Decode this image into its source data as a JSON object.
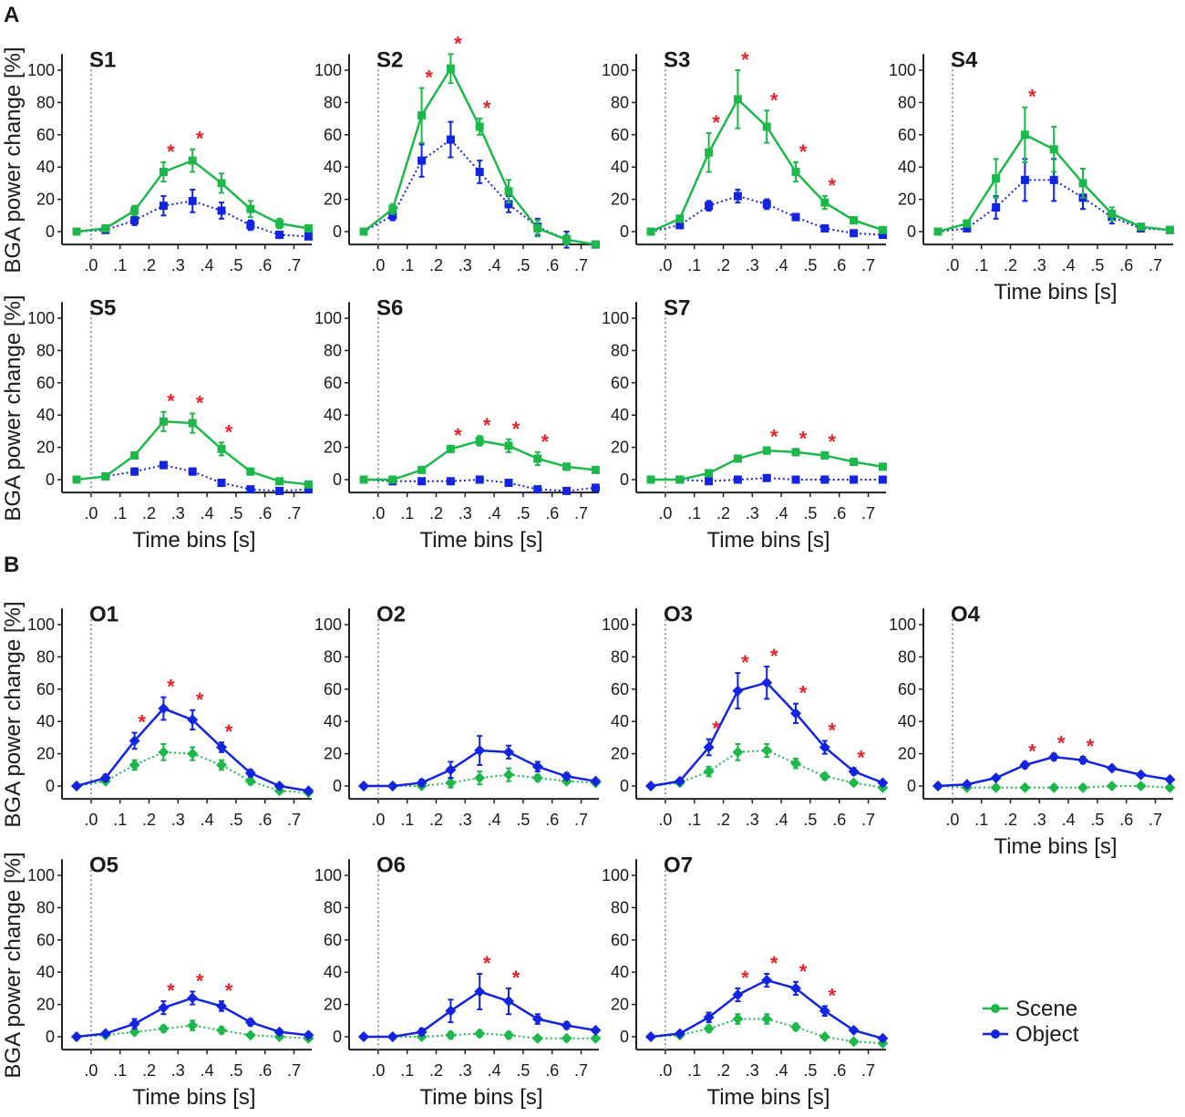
{
  "colors": {
    "scene": "#1db84a",
    "object": "#1224e0",
    "star": "#e8202a",
    "onset": "#999999"
  },
  "sections": [
    {
      "label": "A"
    },
    {
      "label": "B"
    }
  ],
  "legend": {
    "scene": "Scene",
    "object": "Object"
  },
  "axes": {
    "ylabel": "BGA power change [%]",
    "xlabel": "Time bins [s]",
    "yticks": [
      "0",
      "20",
      "40",
      "60",
      "80",
      "100"
    ],
    "xticks": [
      ".0",
      ".1",
      ".2",
      ".3",
      ".4",
      ".5",
      ".6",
      ".7"
    ]
  },
  "chart_data": [
    {
      "type": "line",
      "title": "S1",
      "ylim": [
        -8,
        110
      ],
      "x": [
        -0.05,
        0.05,
        0.15,
        0.25,
        0.35,
        0.45,
        0.55,
        0.65,
        0.75
      ],
      "series": [
        {
          "name": "Scene",
          "values": [
            0,
            2,
            13,
            37,
            44,
            30,
            14,
            5,
            2
          ],
          "err": [
            0,
            2,
            3,
            6,
            7,
            6,
            5,
            3,
            2
          ]
        },
        {
          "name": "Object",
          "values": [
            0,
            1,
            7,
            16,
            19,
            13,
            4,
            -2,
            -3
          ],
          "err": [
            0,
            1,
            3,
            6,
            7,
            5,
            3,
            2,
            1
          ]
        }
      ],
      "significant_bins": [
        0.25,
        0.35
      ]
    },
    {
      "type": "line",
      "title": "S2",
      "ylim": [
        -8,
        110
      ],
      "x": [
        -0.05,
        0.05,
        0.15,
        0.25,
        0.35,
        0.45,
        0.55,
        0.65,
        0.75
      ],
      "series": [
        {
          "name": "Scene",
          "values": [
            0,
            14,
            72,
            101,
            65,
            25,
            2,
            -5,
            -8
          ],
          "err": [
            0,
            3,
            17,
            9,
            5,
            7,
            5,
            3,
            1
          ]
        },
        {
          "name": "Object",
          "values": [
            0,
            10,
            44,
            57,
            37,
            17,
            3,
            -5,
            -8
          ],
          "err": [
            0,
            3,
            10,
            11,
            7,
            5,
            5,
            5,
            1
          ]
        }
      ],
      "significant_bins": [
        0.15,
        0.25,
        0.35
      ]
    },
    {
      "type": "line",
      "title": "S3",
      "ylim": [
        -8,
        110
      ],
      "x": [
        -0.05,
        0.05,
        0.15,
        0.25,
        0.35,
        0.45,
        0.55,
        0.65,
        0.75
      ],
      "series": [
        {
          "name": "Scene",
          "values": [
            0,
            8,
            49,
            82,
            65,
            37,
            18,
            7,
            1
          ],
          "err": [
            0,
            2,
            12,
            18,
            10,
            6,
            4,
            2,
            1
          ]
        },
        {
          "name": "Object",
          "values": [
            0,
            4,
            16,
            22,
            17,
            9,
            2,
            -1,
            -2
          ],
          "err": [
            0,
            1,
            3,
            4,
            3,
            2,
            1,
            1,
            1
          ]
        }
      ],
      "significant_bins": [
        0.15,
        0.25,
        0.35,
        0.45,
        0.55
      ]
    },
    {
      "type": "line",
      "title": "S4",
      "ylim": [
        -8,
        110
      ],
      "x": [
        -0.05,
        0.05,
        0.15,
        0.25,
        0.35,
        0.45,
        0.55,
        0.65,
        0.75
      ],
      "series": [
        {
          "name": "Scene",
          "values": [
            0,
            5,
            33,
            60,
            51,
            30,
            11,
            3,
            1
          ],
          "err": [
            0,
            2,
            12,
            17,
            14,
            9,
            4,
            2,
            1
          ]
        },
        {
          "name": "Object",
          "values": [
            0,
            2,
            15,
            32,
            32,
            21,
            9,
            2,
            1
          ],
          "err": [
            0,
            1,
            7,
            13,
            13,
            7,
            4,
            2,
            1
          ]
        }
      ],
      "significant_bins": [
        0.25
      ]
    },
    {
      "type": "line",
      "title": "S5",
      "ylim": [
        -8,
        110
      ],
      "x": [
        -0.05,
        0.05,
        0.15,
        0.25,
        0.35,
        0.45,
        0.55,
        0.65,
        0.75
      ],
      "series": [
        {
          "name": "Scene",
          "values": [
            0,
            2,
            15,
            36,
            35,
            19,
            5,
            -1,
            -3
          ],
          "err": [
            0,
            1,
            2,
            6,
            6,
            4,
            2,
            1,
            1
          ]
        },
        {
          "name": "Object",
          "values": [
            0,
            2,
            5,
            9,
            5,
            -2,
            -6,
            -7,
            -6
          ],
          "err": [
            0,
            1,
            2,
            2,
            2,
            2,
            1,
            1,
            1
          ]
        }
      ],
      "significant_bins": [
        0.25,
        0.35,
        0.45
      ]
    },
    {
      "type": "line",
      "title": "S6",
      "ylim": [
        -8,
        110
      ],
      "x": [
        -0.05,
        0.05,
        0.15,
        0.25,
        0.35,
        0.45,
        0.55,
        0.65,
        0.75
      ],
      "series": [
        {
          "name": "Scene",
          "values": [
            0,
            0,
            6,
            19,
            24,
            21,
            13,
            8,
            6
          ],
          "err": [
            0,
            1,
            1,
            2,
            3,
            4,
            4,
            2,
            1
          ]
        },
        {
          "name": "Object",
          "values": [
            0,
            -1,
            -1,
            -1,
            0,
            -2,
            -6,
            -7,
            -5
          ],
          "err": [
            0,
            1,
            1,
            1,
            1,
            1,
            1,
            1,
            1
          ]
        }
      ],
      "significant_bins": [
        0.25,
        0.35,
        0.45,
        0.55
      ]
    },
    {
      "type": "line",
      "title": "S7",
      "ylim": [
        -8,
        110
      ],
      "x": [
        -0.05,
        0.05,
        0.15,
        0.25,
        0.35,
        0.45,
        0.55,
        0.65,
        0.75
      ],
      "series": [
        {
          "name": "Scene",
          "values": [
            0,
            0,
            4,
            13,
            18,
            17,
            15,
            11,
            8
          ],
          "err": [
            0,
            1,
            1,
            1,
            2,
            2,
            2,
            1,
            1
          ]
        },
        {
          "name": "Object",
          "values": [
            0,
            0,
            -1,
            0,
            1,
            0,
            0,
            0,
            0
          ],
          "err": [
            0,
            1,
            1,
            1,
            1,
            1,
            1,
            1,
            1
          ]
        }
      ],
      "significant_bins": [
        0.35,
        0.45,
        0.55
      ]
    },
    {
      "type": "line",
      "title": "O1",
      "ylim": [
        -8,
        110
      ],
      "x": [
        -0.05,
        0.05,
        0.15,
        0.25,
        0.35,
        0.45,
        0.55,
        0.65,
        0.75
      ],
      "series": [
        {
          "name": "Scene",
          "values": [
            0,
            3,
            13,
            21,
            20,
            13,
            3,
            -3,
            -4
          ],
          "err": [
            0,
            1,
            3,
            5,
            4,
            3,
            2,
            1,
            1
          ]
        },
        {
          "name": "Object",
          "values": [
            0,
            5,
            28,
            48,
            41,
            24,
            8,
            0,
            -3
          ],
          "err": [
            0,
            2,
            5,
            7,
            6,
            3,
            2,
            1,
            1
          ]
        }
      ],
      "significant_bins": [
        0.15,
        0.25,
        0.35,
        0.45
      ]
    },
    {
      "type": "line",
      "title": "O2",
      "ylim": [
        -8,
        110
      ],
      "x": [
        -0.05,
        0.05,
        0.15,
        0.25,
        0.35,
        0.45,
        0.55,
        0.65,
        0.75
      ],
      "series": [
        {
          "name": "Scene",
          "values": [
            0,
            0,
            0,
            2,
            5,
            7,
            5,
            3,
            2
          ],
          "err": [
            0,
            1,
            1,
            3,
            4,
            4,
            2,
            1,
            1
          ]
        },
        {
          "name": "Object",
          "values": [
            0,
            0,
            2,
            10,
            22,
            21,
            12,
            6,
            3
          ],
          "err": [
            0,
            1,
            2,
            5,
            9,
            4,
            3,
            2,
            1
          ]
        }
      ],
      "significant_bins": []
    },
    {
      "type": "line",
      "title": "O3",
      "ylim": [
        -8,
        110
      ],
      "x": [
        -0.05,
        0.05,
        0.15,
        0.25,
        0.35,
        0.45,
        0.55,
        0.65,
        0.75
      ],
      "series": [
        {
          "name": "Scene",
          "values": [
            0,
            2,
            9,
            21,
            22,
            14,
            6,
            2,
            -1
          ],
          "err": [
            0,
            1,
            3,
            5,
            4,
            3,
            2,
            1,
            1
          ]
        },
        {
          "name": "Object",
          "values": [
            0,
            3,
            24,
            59,
            64,
            45,
            24,
            9,
            2
          ],
          "err": [
            0,
            1,
            5,
            11,
            10,
            6,
            4,
            2,
            1
          ]
        }
      ],
      "significant_bins": [
        0.15,
        0.25,
        0.35,
        0.45,
        0.55,
        0.65
      ]
    },
    {
      "type": "line",
      "title": "O4",
      "ylim": [
        -8,
        110
      ],
      "x": [
        -0.05,
        0.05,
        0.15,
        0.25,
        0.35,
        0.45,
        0.55,
        0.65,
        0.75
      ],
      "series": [
        {
          "name": "Scene",
          "values": [
            0,
            -1,
            -1,
            -1,
            -1,
            -1,
            0,
            0,
            -1
          ],
          "err": [
            0,
            1,
            1,
            1,
            1,
            1,
            1,
            1,
            1
          ]
        },
        {
          "name": "Object",
          "values": [
            0,
            1,
            5,
            13,
            18,
            16,
            11,
            7,
            4
          ],
          "err": [
            0,
            1,
            1,
            2,
            2,
            2,
            1,
            1,
            1
          ]
        }
      ],
      "significant_bins": [
        0.25,
        0.35,
        0.45
      ]
    },
    {
      "type": "line",
      "title": "O5",
      "ylim": [
        -8,
        110
      ],
      "x": [
        -0.05,
        0.05,
        0.15,
        0.25,
        0.35,
        0.45,
        0.55,
        0.65,
        0.75
      ],
      "series": [
        {
          "name": "Scene",
          "values": [
            0,
            1,
            3,
            5,
            7,
            4,
            1,
            0,
            -1
          ],
          "err": [
            0,
            1,
            1,
            2,
            3,
            2,
            1,
            1,
            1
          ]
        },
        {
          "name": "Object",
          "values": [
            0,
            2,
            8,
            18,
            24,
            19,
            9,
            3,
            1
          ],
          "err": [
            0,
            1,
            3,
            4,
            4,
            3,
            2,
            1,
            1
          ]
        }
      ],
      "significant_bins": [
        0.25,
        0.35,
        0.45
      ]
    },
    {
      "type": "line",
      "title": "O6",
      "ylim": [
        -8,
        110
      ],
      "x": [
        -0.05,
        0.05,
        0.15,
        0.25,
        0.35,
        0.45,
        0.55,
        0.65,
        0.75
      ],
      "series": [
        {
          "name": "Scene",
          "values": [
            0,
            0,
            0,
            1,
            2,
            1,
            -1,
            -1,
            -1
          ],
          "err": [
            0,
            1,
            1,
            2,
            2,
            2,
            1,
            1,
            1
          ]
        },
        {
          "name": "Object",
          "values": [
            0,
            0,
            3,
            16,
            28,
            22,
            11,
            7,
            4
          ],
          "err": [
            0,
            1,
            2,
            7,
            11,
            8,
            3,
            2,
            1
          ]
        }
      ],
      "significant_bins": [
        0.35,
        0.45
      ]
    },
    {
      "type": "line",
      "title": "O7",
      "ylim": [
        -8,
        110
      ],
      "x": [
        -0.05,
        0.05,
        0.15,
        0.25,
        0.35,
        0.45,
        0.55,
        0.65,
        0.75
      ],
      "series": [
        {
          "name": "Scene",
          "values": [
            0,
            1,
            5,
            11,
            11,
            6,
            0,
            -3,
            -4
          ],
          "err": [
            0,
            1,
            2,
            3,
            3,
            2,
            1,
            1,
            1
          ]
        },
        {
          "name": "Object",
          "values": [
            0,
            2,
            12,
            26,
            35,
            30,
            16,
            4,
            -1
          ],
          "err": [
            0,
            1,
            3,
            4,
            4,
            4,
            3,
            1,
            1
          ]
        }
      ],
      "significant_bins": [
        0.25,
        0.35,
        0.45,
        0.55
      ]
    }
  ]
}
